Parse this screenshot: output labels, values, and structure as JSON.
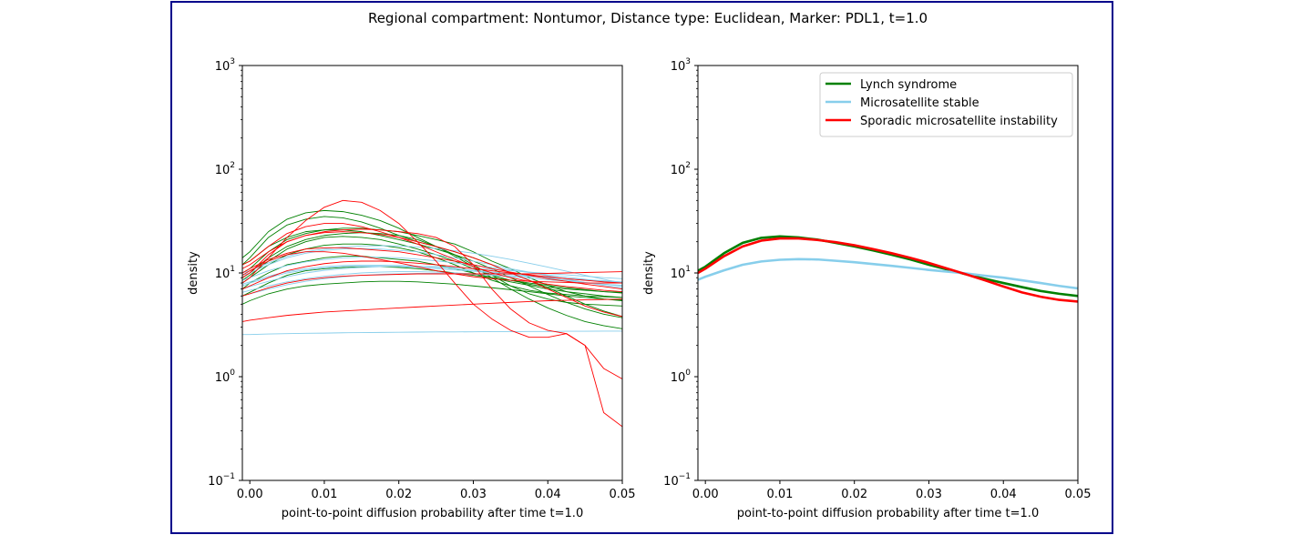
{
  "figure": {
    "title": "Regional compartment: Nontumor, Distance type: Euclidean, Marker: PDL1, t=1.0",
    "frame_color": "#00008b"
  },
  "series_colors": {
    "Lynch syndrome": "#008000",
    "Microsatellite stable": "#87ceeb",
    "Sporadic microsatellite instability": "#ff0000"
  },
  "chart_data": [
    {
      "type": "line",
      "panel": "left",
      "title": "",
      "xlabel": "point-to-point diffusion probability after time t=1.0",
      "ylabel": "density",
      "xlim": [
        -0.001,
        0.05
      ],
      "ylim": [
        0.1,
        1000
      ],
      "yscale": "log",
      "x_ticks": [
        "0.00",
        "0.01",
        "0.02",
        "0.03",
        "0.04",
        "0.05"
      ],
      "y_ticks": [
        {
          "value": 0.1,
          "base": "10",
          "exp": "−1"
        },
        {
          "value": 1,
          "base": "10",
          "exp": "0"
        },
        {
          "value": 10,
          "base": "10",
          "exp": "1"
        },
        {
          "value": 100,
          "base": "10",
          "exp": "2"
        },
        {
          "value": 1000,
          "base": "10",
          "exp": "3"
        }
      ],
      "x": [
        -0.001,
        0.0,
        0.0025,
        0.005,
        0.0075,
        0.01,
        0.0125,
        0.015,
        0.0175,
        0.02,
        0.0225,
        0.025,
        0.0275,
        0.03,
        0.0325,
        0.035,
        0.0375,
        0.04,
        0.0425,
        0.045,
        0.0475,
        0.05
      ],
      "series": [
        {
          "group": "Lynch syndrome",
          "values": [
            14.0,
            16.0,
            25.0,
            33.0,
            38.0,
            40.0,
            39.0,
            36.0,
            32.0,
            27.0,
            22.0,
            18.0,
            14.5,
            11.5,
            9.0,
            7.0,
            5.6,
            4.6,
            3.9,
            3.4,
            3.1,
            2.9
          ]
        },
        {
          "group": "Lynch syndrome",
          "values": [
            12.0,
            14.0,
            22.0,
            29.0,
            33.0,
            35.0,
            34.0,
            31.0,
            27.0,
            23.0,
            20.0,
            18.0,
            16.0,
            14.0,
            12.0,
            10.0,
            8.5,
            7.2,
            6.0,
            5.0,
            4.3,
            3.8
          ]
        },
        {
          "group": "Lynch syndrome",
          "values": [
            10.0,
            11.0,
            16.0,
            21.0,
            24.0,
            26.0,
            27.0,
            27.0,
            26.0,
            25.0,
            23.0,
            21.0,
            19.0,
            16.0,
            13.0,
            11.0,
            9.0,
            7.6,
            6.6,
            6.0,
            5.6,
            5.4
          ]
        },
        {
          "group": "Lynch syndrome",
          "values": [
            9.0,
            10.0,
            14.0,
            18.0,
            21.0,
            23.0,
            24.0,
            24.5,
            24.0,
            23.0,
            21.0,
            18.0,
            15.0,
            12.0,
            9.5,
            7.5,
            6.3,
            5.6,
            5.2,
            5.0,
            4.9,
            4.8
          ]
        },
        {
          "group": "Lynch syndrome",
          "values": [
            8.0,
            9.0,
            12.0,
            15.0,
            17.0,
            18.5,
            19.0,
            19.0,
            18.5,
            17.5,
            16.0,
            14.0,
            12.0,
            10.0,
            8.5,
            7.5,
            6.8,
            6.4,
            6.2,
            6.0,
            5.9,
            5.8
          ]
        },
        {
          "group": "Lynch syndrome",
          "values": [
            7.0,
            8.0,
            10.0,
            12.0,
            13.0,
            14.0,
            14.5,
            14.5,
            14.0,
            13.5,
            13.0,
            12.0,
            11.0,
            10.0,
            9.0,
            8.2,
            7.6,
            7.0,
            6.6,
            6.3,
            6.0,
            5.8
          ]
        },
        {
          "group": "Lynch syndrome",
          "values": [
            6.0,
            6.5,
            8.0,
            9.5,
            10.5,
            11.0,
            11.3,
            11.5,
            11.5,
            11.3,
            11.0,
            10.5,
            10.0,
            9.5,
            9.0,
            8.5,
            8.0,
            7.6,
            7.2,
            6.9,
            6.6,
            6.4
          ]
        },
        {
          "group": "Lynch syndrome",
          "values": [
            5.0,
            5.4,
            6.3,
            7.0,
            7.5,
            7.8,
            8.0,
            8.2,
            8.3,
            8.3,
            8.2,
            8.0,
            7.8,
            7.5,
            7.2,
            6.9,
            6.6,
            6.3,
            6.0,
            5.8,
            5.6,
            5.5
          ]
        },
        {
          "group": "Lynch syndrome",
          "values": [
            12.0,
            13.0,
            18.0,
            22.0,
            25.0,
            26.0,
            26.0,
            25.0,
            23.0,
            21.0,
            19.0,
            17.0,
            15.0,
            13.0,
            11.0,
            9.0,
            7.5,
            6.2,
            5.2,
            4.5,
            4.0,
            3.7
          ]
        },
        {
          "group": "Lynch syndrome",
          "values": [
            8.5,
            9.5,
            13.0,
            17.0,
            20.0,
            22.0,
            22.5,
            22.0,
            21.0,
            19.0,
            17.0,
            15.0,
            13.0,
            11.0,
            9.5,
            8.5,
            7.8,
            7.3,
            7.0,
            6.8,
            6.6,
            6.5
          ]
        },
        {
          "group": "Microsatellite stable",
          "values": [
            2.55,
            2.55,
            2.58,
            2.6,
            2.62,
            2.63,
            2.65,
            2.66,
            2.67,
            2.68,
            2.69,
            2.7,
            2.7,
            2.71,
            2.72,
            2.72,
            2.73,
            2.73,
            2.74,
            2.74,
            2.75,
            2.75
          ]
        },
        {
          "group": "Microsatellite stable",
          "values": [
            6.5,
            6.8,
            7.5,
            8.2,
            8.8,
            9.3,
            9.7,
            10.0,
            10.2,
            10.3,
            10.3,
            10.2,
            10.0,
            9.8,
            9.5,
            9.2,
            8.9,
            8.6,
            8.3,
            8.0,
            7.8,
            7.6
          ]
        },
        {
          "group": "Microsatellite stable",
          "values": [
            7.5,
            8.0,
            9.0,
            10.0,
            10.7,
            11.2,
            11.5,
            11.6,
            11.6,
            11.5,
            11.3,
            11.0,
            10.7,
            10.4,
            10.0,
            9.7,
            9.4,
            9.1,
            8.8,
            8.5,
            8.3,
            8.1
          ]
        },
        {
          "group": "Microsatellite stable",
          "values": [
            8.5,
            9.0,
            10.5,
            11.8,
            12.8,
            13.5,
            14.0,
            14.2,
            14.2,
            14.0,
            13.6,
            13.1,
            12.5,
            11.9,
            11.3,
            10.7,
            10.1,
            9.6,
            9.1,
            8.7,
            8.3,
            8.0
          ]
        },
        {
          "group": "Microsatellite stable",
          "values": [
            9.5,
            10.0,
            12.0,
            14.0,
            15.5,
            16.5,
            17.0,
            17.2,
            17.0,
            16.5,
            16.0,
            15.0,
            14.0,
            13.0,
            12.0,
            11.0,
            10.2,
            9.4,
            8.7,
            8.1,
            7.6,
            7.2
          ]
        },
        {
          "group": "Microsatellite stable",
          "values": [
            7.0,
            7.4,
            8.3,
            9.2,
            10.0,
            10.6,
            11.0,
            11.3,
            11.5,
            11.6,
            11.6,
            11.5,
            11.3,
            11.1,
            10.8,
            10.5,
            10.2,
            9.9,
            9.6,
            9.3,
            9.0,
            8.8
          ]
        },
        {
          "group": "Microsatellite stable",
          "values": [
            6.0,
            6.3,
            7.0,
            7.7,
            8.3,
            8.8,
            9.2,
            9.5,
            9.7,
            9.8,
            9.9,
            9.9,
            9.8,
            9.7,
            9.6,
            9.4,
            9.2,
            9.0,
            8.8,
            8.6,
            8.4,
            8.2
          ]
        },
        {
          "group": "Microsatellite stable",
          "values": [
            10.0,
            10.5,
            12.5,
            14.5,
            16.0,
            17.0,
            17.8,
            18.2,
            18.3,
            18.2,
            17.8,
            17.2,
            16.4,
            15.5,
            14.5,
            13.5,
            12.4,
            11.4,
            10.4,
            9.5,
            8.7,
            8.0
          ]
        },
        {
          "group": "Microsatellite stable",
          "values": [
            7.8,
            8.2,
            9.3,
            10.3,
            11.0,
            11.5,
            11.8,
            11.9,
            11.9,
            11.8,
            11.6,
            11.3,
            11.0,
            10.6,
            10.2,
            9.8,
            9.3,
            8.9,
            8.5,
            8.1,
            7.8,
            7.5
          ]
        },
        {
          "group": "Sporadic microsatellite instability",
          "values": [
            8.0,
            9.0,
            14.0,
            22.0,
            32.0,
            43.0,
            50.0,
            48.0,
            40.0,
            30.0,
            20.0,
            13.0,
            8.0,
            5.0,
            3.6,
            2.8,
            2.4,
            2.4,
            2.6,
            2.0,
            1.2,
            0.95
          ]
        },
        {
          "group": "Sporadic microsatellite instability",
          "values": [
            9.0,
            10.0,
            15.0,
            20.0,
            23.0,
            25.0,
            26.0,
            26.5,
            26.0,
            25.0,
            24.0,
            22.0,
            18.0,
            12.0,
            7.0,
            4.5,
            3.3,
            2.8,
            2.6,
            2.0,
            0.45,
            0.33
          ]
        },
        {
          "group": "Sporadic microsatellite instability",
          "values": [
            3.4,
            3.5,
            3.7,
            3.9,
            4.05,
            4.2,
            4.3,
            4.4,
            4.5,
            4.6,
            4.7,
            4.8,
            4.9,
            5.0,
            5.1,
            5.2,
            5.3,
            5.4,
            5.45,
            5.5,
            5.55,
            5.6
          ]
        },
        {
          "group": "Sporadic microsatellite instability",
          "values": [
            11.0,
            12.0,
            16.0,
            20.0,
            23.0,
            24.5,
            25.0,
            24.5,
            23.5,
            22.0,
            20.0,
            18.0,
            16.0,
            14.0,
            12.0,
            10.0,
            8.5,
            7.0,
            5.8,
            4.8,
            4.2,
            3.8
          ]
        },
        {
          "group": "Sporadic microsatellite instability",
          "values": [
            10.0,
            11.0,
            13.5,
            15.5,
            17.0,
            17.5,
            17.5,
            17.0,
            16.5,
            16.0,
            15.0,
            14.0,
            13.0,
            12.0,
            11.0,
            10.2,
            9.5,
            8.8,
            8.3,
            7.8,
            7.4,
            7.0
          ]
        },
        {
          "group": "Sporadic microsatellite instability",
          "values": [
            7.0,
            7.5,
            9.0,
            10.5,
            11.5,
            12.3,
            12.8,
            13.0,
            13.0,
            12.8,
            12.4,
            12.0,
            11.5,
            11.0,
            10.5,
            10.0,
            9.6,
            9.2,
            8.8,
            8.5,
            8.2,
            8.0
          ]
        },
        {
          "group": "Sporadic microsatellite instability",
          "values": [
            12.0,
            13.0,
            18.0,
            24.0,
            28.0,
            30.0,
            30.0,
            28.0,
            25.0,
            22.0,
            19.0,
            16.0,
            13.5,
            11.5,
            10.0,
            9.0,
            8.3,
            7.8,
            7.4,
            7.1,
            6.8,
            6.6
          ]
        },
        {
          "group": "Sporadic microsatellite instability",
          "values": [
            6.0,
            6.3,
            7.2,
            8.0,
            8.6,
            9.0,
            9.3,
            9.5,
            9.6,
            9.7,
            9.8,
            9.8,
            9.8,
            9.8,
            9.8,
            9.8,
            9.8,
            9.9,
            10.0,
            10.1,
            10.2,
            10.3
          ]
        },
        {
          "group": "Sporadic microsatellite instability",
          "values": [
            9.5,
            10.5,
            13.0,
            15.0,
            16.0,
            16.0,
            15.5,
            14.5,
            13.5,
            12.5,
            11.5,
            10.5,
            9.8,
            9.2,
            8.8,
            8.5,
            8.3,
            8.2,
            8.1,
            8.0,
            8.0,
            8.0
          ]
        }
      ]
    },
    {
      "type": "line",
      "panel": "right",
      "title": "",
      "xlabel": "point-to-point diffusion probability after time t=1.0",
      "ylabel": "density",
      "xlim": [
        -0.001,
        0.05
      ],
      "ylim": [
        0.1,
        1000
      ],
      "yscale": "log",
      "x_ticks": [
        "0.00",
        "0.01",
        "0.02",
        "0.03",
        "0.04",
        "0.05"
      ],
      "y_ticks": [
        {
          "value": 0.1,
          "base": "10",
          "exp": "−1"
        },
        {
          "value": 1,
          "base": "10",
          "exp": "0"
        },
        {
          "value": 10,
          "base": "10",
          "exp": "1"
        },
        {
          "value": 100,
          "base": "10",
          "exp": "2"
        },
        {
          "value": 1000,
          "base": "10",
          "exp": "3"
        }
      ],
      "legend": {
        "position": "top-right",
        "entries": [
          "Lynch syndrome",
          "Microsatellite stable",
          "Sporadic microsatellite instability"
        ]
      },
      "x": [
        -0.001,
        0.0,
        0.0025,
        0.005,
        0.0075,
        0.01,
        0.0125,
        0.015,
        0.0175,
        0.02,
        0.0225,
        0.025,
        0.0275,
        0.03,
        0.0325,
        0.035,
        0.0375,
        0.04,
        0.0425,
        0.045,
        0.0475,
        0.05
      ],
      "series": [
        {
          "name": "Lynch syndrome",
          "values": [
            10.5,
            11.5,
            15.5,
            19.5,
            21.8,
            22.5,
            22.0,
            21.0,
            19.5,
            18.0,
            16.5,
            15.0,
            13.5,
            12.0,
            10.8,
            9.7,
            8.8,
            8.0,
            7.3,
            6.7,
            6.3,
            6.0
          ]
        },
        {
          "name": "Microsatellite stable",
          "values": [
            8.6,
            9.2,
            10.6,
            12.0,
            12.9,
            13.4,
            13.6,
            13.5,
            13.1,
            12.7,
            12.2,
            11.7,
            11.2,
            10.7,
            10.3,
            9.9,
            9.4,
            9.0,
            8.5,
            8.0,
            7.5,
            7.1
          ]
        },
        {
          "name": "Sporadic microsatellite instability",
          "values": [
            10.0,
            11.0,
            14.5,
            18.0,
            20.5,
            21.5,
            21.5,
            20.8,
            19.8,
            18.5,
            17.0,
            15.5,
            14.0,
            12.5,
            11.0,
            9.7,
            8.5,
            7.4,
            6.5,
            5.9,
            5.5,
            5.3
          ]
        }
      ]
    }
  ]
}
